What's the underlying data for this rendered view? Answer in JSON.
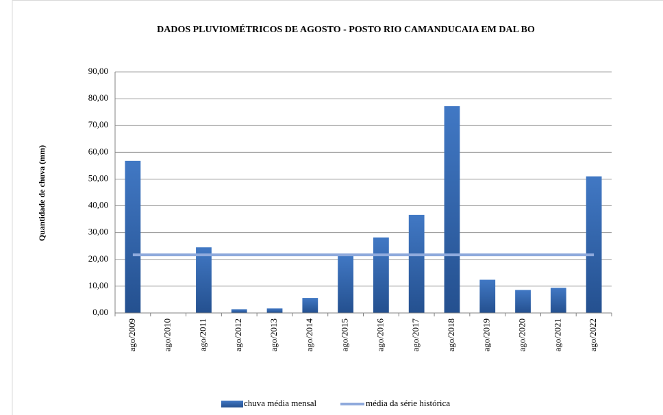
{
  "chart_data": {
    "type": "bar",
    "title": "DADOS PLUVIOMÉTRICOS DE AGOSTO - POSTO RIO CAMANDUCAIA EM DAL BO",
    "y_label": "Quantidade  de chuva (mm)",
    "categories": [
      "ago/2009",
      "ago/2010",
      "ago/2011",
      "ago/2012",
      "ago/2013",
      "ago/2014",
      "ago/2015",
      "ago/2016",
      "ago/2017",
      "ago/2018",
      "ago/2019",
      "ago/2020",
      "ago/2021",
      "ago/2022"
    ],
    "series": [
      {
        "name": "chuva média mensal",
        "type": "bar",
        "color": "#2e5fa3",
        "values": [
          56.8,
          0,
          24.5,
          1.4,
          1.7,
          5.6,
          21.5,
          28.2,
          36.6,
          77.2,
          12.4,
          8.6,
          9.4,
          51.0
        ]
      },
      {
        "name": "média da série histórica",
        "type": "line",
        "color": "#8faadc",
        "values": [
          21.7,
          21.7,
          21.7,
          21.7,
          21.7,
          21.7,
          21.7,
          21.7,
          21.7,
          21.7,
          21.7,
          21.7,
          21.7,
          21.7
        ]
      }
    ],
    "ylim": [
      0,
      90
    ],
    "yticks": [
      {
        "value": 0,
        "label": "0,00"
      },
      {
        "value": 10,
        "label": "10,00"
      },
      {
        "value": 20,
        "label": "20,00"
      },
      {
        "value": 30,
        "label": "30,00"
      },
      {
        "value": 40,
        "label": "40,00"
      },
      {
        "value": 50,
        "label": "50,00"
      },
      {
        "value": 60,
        "label": "60,00"
      },
      {
        "value": 70,
        "label": "70,00"
      },
      {
        "value": 80,
        "label": "80,00"
      },
      {
        "value": 90,
        "label": "90,00"
      }
    ],
    "grid": true,
    "legend": "bottom"
  }
}
